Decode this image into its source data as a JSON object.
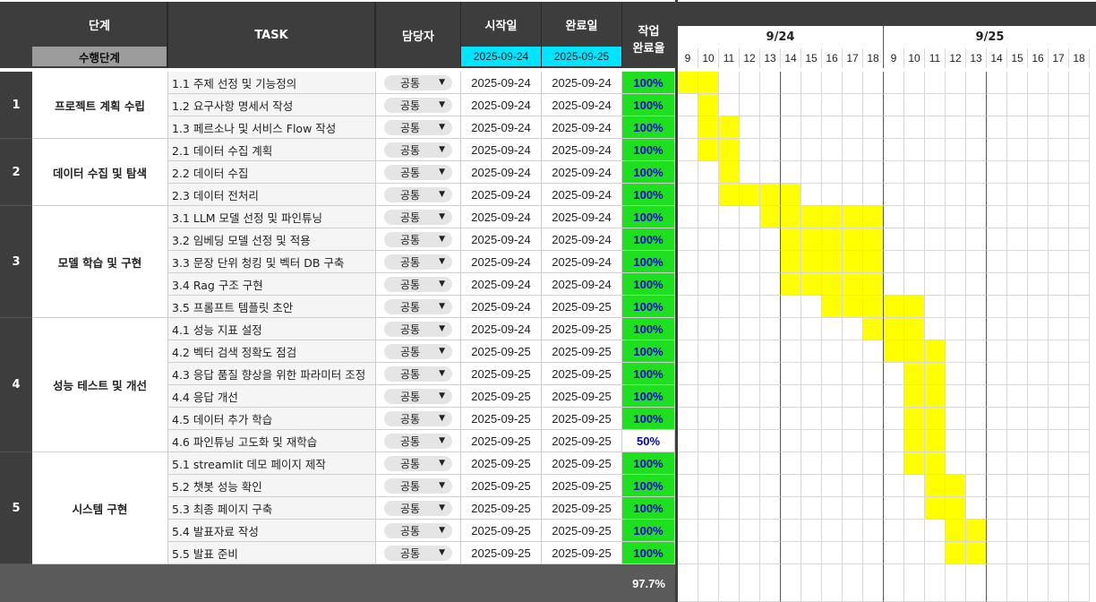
{
  "header": {
    "stage": "단계",
    "stage_sub": "수행단계",
    "task": "TASK",
    "owner": "담당자",
    "start": "시작일",
    "end": "완료일",
    "progress_line1": "작업",
    "progress_line2": "완료율",
    "start_date": "2025-09-24",
    "end_date": "2025-09-25"
  },
  "gantt": {
    "days": [
      "9/24",
      "9/25"
    ],
    "hours": [
      "9",
      "10",
      "11",
      "12",
      "13",
      "14",
      "15",
      "16",
      "17",
      "18",
      "9",
      "10",
      "11",
      "12",
      "13",
      "14",
      "15",
      "16",
      "17",
      "18"
    ]
  },
  "phases": [
    {
      "num": "1",
      "name": "프로젝트 계획 수립",
      "rows": 3
    },
    {
      "num": "2",
      "name": "데이터 수집 및 탐색",
      "rows": 3
    },
    {
      "num": "3",
      "name": "모델 학습 및 구현",
      "rows": 5
    },
    {
      "num": "4",
      "name": "성능 테스트 및 개선",
      "rows": 6
    },
    {
      "num": "5",
      "name": "시스템 구현",
      "rows": 5
    }
  ],
  "tasks": [
    {
      "task": "1.1 주제 선정 및 기능정의",
      "owner": "공통",
      "start": "2025-09-24",
      "end": "2025-09-24",
      "pct": "100%",
      "from": 0,
      "to": 2
    },
    {
      "task": "1.2 요구사항 명세서 작성",
      "owner": "공통",
      "start": "2025-09-24",
      "end": "2025-09-24",
      "pct": "100%",
      "from": 1,
      "to": 2
    },
    {
      "task": "1.3 페르소나 및 서비스 Flow 작성",
      "owner": "공통",
      "start": "2025-09-24",
      "end": "2025-09-24",
      "pct": "100%",
      "from": 1,
      "to": 3
    },
    {
      "task": "2.1 데이터 수집 계획",
      "owner": "공통",
      "start": "2025-09-24",
      "end": "2025-09-24",
      "pct": "100%",
      "from": 1,
      "to": 3
    },
    {
      "task": "2.2 데이터 수집",
      "owner": "공통",
      "start": "2025-09-24",
      "end": "2025-09-24",
      "pct": "100%",
      "from": 2,
      "to": 3
    },
    {
      "task": "2.3 데이터 전처리",
      "owner": "공통",
      "start": "2025-09-24",
      "end": "2025-09-24",
      "pct": "100%",
      "from": 2,
      "to": 6
    },
    {
      "task": "3.1 LLM 모델 선정  및  파인튜닝",
      "owner": "공통",
      "start": "2025-09-24",
      "end": "2025-09-24",
      "pct": "100%",
      "from": 4,
      "to": 10
    },
    {
      "task": "3.2 임베딩 모델 선정 및 적용",
      "owner": "공통",
      "start": "2025-09-24",
      "end": "2025-09-24",
      "pct": "100%",
      "from": 5,
      "to": 10
    },
    {
      "task": "3.3 문장 단위 청킹 및 벡터 DB 구축",
      "owner": "공통",
      "start": "2025-09-24",
      "end": "2025-09-24",
      "pct": "100%",
      "from": 5,
      "to": 10
    },
    {
      "task": "3.4 Rag 구조 구현",
      "owner": "공통",
      "start": "2025-09-24",
      "end": "2025-09-24",
      "pct": "100%",
      "from": 5,
      "to": 10
    },
    {
      "task": "3.5 프롬프트 템플릿 초안",
      "owner": "공통",
      "start": "2025-09-24",
      "end": "2025-09-25",
      "pct": "100%",
      "from": 7,
      "to": 12
    },
    {
      "task": "4.1 성능 지표 설정",
      "owner": "공통",
      "start": "2025-09-24",
      "end": "2025-09-25",
      "pct": "100%",
      "from": 9,
      "to": 12
    },
    {
      "task": "4.2 벡터 검색 정확도 점검",
      "owner": "공통",
      "start": "2025-09-25",
      "end": "2025-09-25",
      "pct": "100%",
      "from": 10,
      "to": 13
    },
    {
      "task": "4.3 응답 품질 향상을 위한 파라미터 조정",
      "owner": "공통",
      "start": "2025-09-25",
      "end": "2025-09-25",
      "pct": "100%",
      "from": 11,
      "to": 13
    },
    {
      "task": "4.4 응답 개선",
      "owner": "공통",
      "start": "2025-09-25",
      "end": "2025-09-25",
      "pct": "100%",
      "from": 11,
      "to": 13
    },
    {
      "task": "4.5 데이터 추가 학습",
      "owner": "공통",
      "start": "2025-09-25",
      "end": "2025-09-25",
      "pct": "100%",
      "from": 11,
      "to": 13
    },
    {
      "task": "4.6 파인튜닝 고도화 및 재학습",
      "owner": "공통",
      "start": "2025-09-25",
      "end": "2025-09-25",
      "pct": "50%",
      "from": 11,
      "to": 13
    },
    {
      "task": "5.1 streamlit 데모 페이지 제작",
      "owner": "공통",
      "start": "2025-09-25",
      "end": "2025-09-25",
      "pct": "100%",
      "from": 11,
      "to": 13
    },
    {
      "task": "5.2 챗봇 성능 확인",
      "owner": "공통",
      "start": "2025-09-25",
      "end": "2025-09-25",
      "pct": "100%",
      "from": 12,
      "to": 14
    },
    {
      "task": "5.3 최종 페이지 구축",
      "owner": "공통",
      "start": "2025-09-25",
      "end": "2025-09-25",
      "pct": "100%",
      "from": 12,
      "to": 14
    },
    {
      "task": "5.4 발표자료 작성",
      "owner": "공통",
      "start": "2025-09-25",
      "end": "2025-09-25",
      "pct": "100%",
      "from": 13,
      "to": 15
    },
    {
      "task": "5.5 발표 준비",
      "owner": "공통",
      "start": "2025-09-25",
      "end": "2025-09-25",
      "pct": "100%",
      "from": 13,
      "to": 15
    }
  ],
  "total_pct": "97.7%",
  "colors": {
    "header_dark": "#3d3d3d",
    "date_header": "#00e5ff",
    "done_green": "#1ee01e",
    "gantt_fill": "#ffff00"
  }
}
